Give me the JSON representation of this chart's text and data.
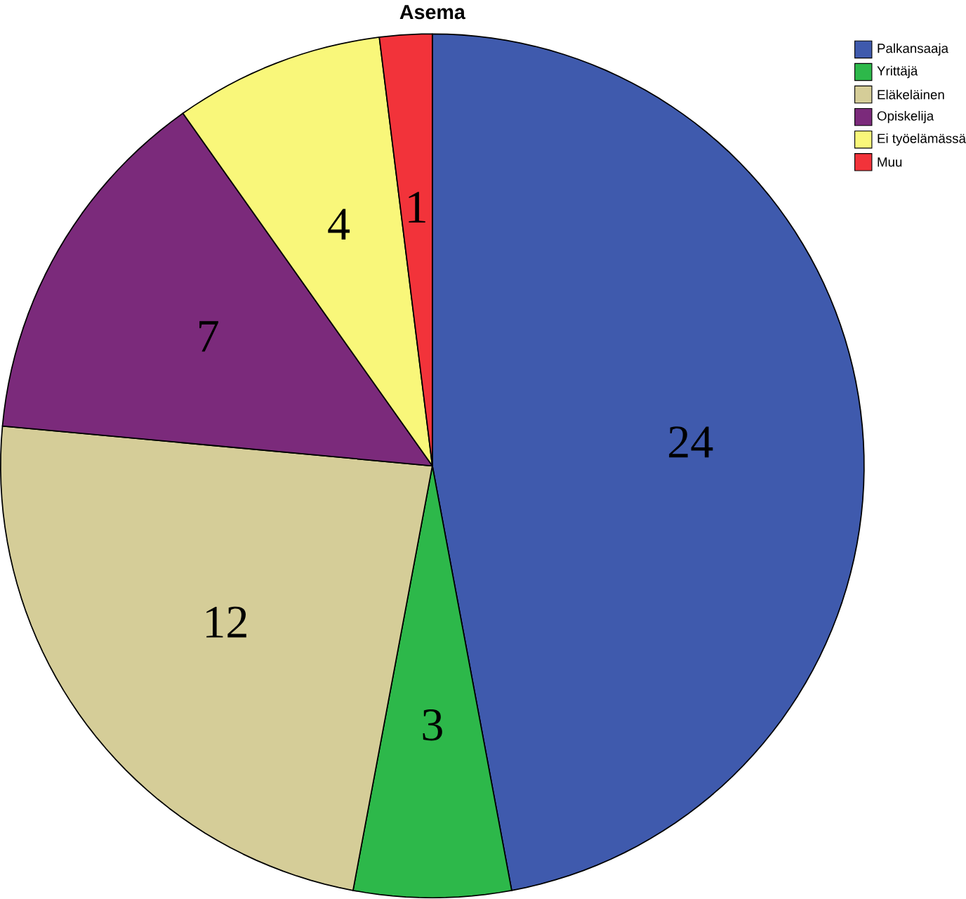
{
  "chart_data": {
    "type": "pie",
    "title": "Asema",
    "categories": [
      "Palkansaaja",
      "Yrittäjä",
      "Eläkeläinen",
      "Opiskelija",
      "Ei työelämässä",
      "Muu"
    ],
    "values": [
      24,
      3,
      12,
      7,
      4,
      1
    ],
    "colors": [
      "#3f5aad",
      "#2db84a",
      "#d5cd98",
      "#7b2a7b",
      "#f9f77a",
      "#f2333a"
    ],
    "data_labels": true,
    "legend": "top right"
  }
}
